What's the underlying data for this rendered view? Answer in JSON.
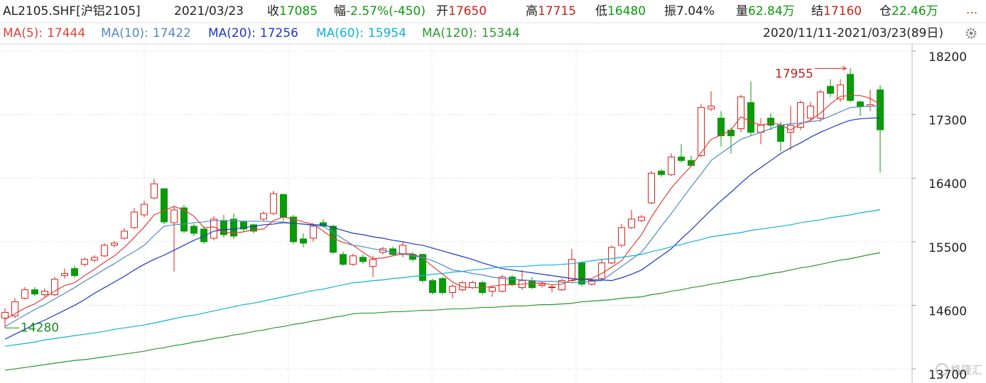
{
  "header": {
    "symbol": "AL2105.SHF[沪铝2105]",
    "date": "2021/03/23",
    "quote": [
      {
        "label": "收",
        "value": 17085,
        "color": "#0a9a0a"
      },
      {
        "label": "幅",
        "value": "-2.57%(-450)",
        "color": "#0a9a0a"
      },
      {
        "label": "开",
        "value": 17650,
        "color": "#d0201a"
      },
      {
        "label": "高",
        "value": 17715,
        "color": "#d0201a"
      },
      {
        "label": "低",
        "value": 16480,
        "color": "#0a9a0a"
      },
      {
        "label": "振",
        "value": "7.04%",
        "color": "#222222"
      },
      {
        "label": "量",
        "value": "62.84万",
        "color": "#0a9a0a"
      },
      {
        "label": "结",
        "value": 17160,
        "color": "#d0201a"
      },
      {
        "label": "仓",
        "value": "22.46万",
        "color": "#0a9a0a"
      }
    ],
    "more": "...",
    "range": "2020/11/11-2021/03/23(89日)"
  },
  "watermark": "格隆汇",
  "chart_data": {
    "type": "candlestick",
    "up_color": "#e0201a",
    "down_color": "#0a9a0a",
    "grid": true,
    "ylim": [
      13500,
      18300
    ],
    "yticks": [
      13700,
      14600,
      15500,
      16400,
      17300,
      18200
    ],
    "categories": [
      null,
      null,
      null,
      null,
      null,
      null,
      null,
      null,
      null,
      null,
      null,
      null,
      null,
      null,
      null,
      null,
      null,
      null,
      null,
      null,
      null,
      null,
      null,
      null,
      null,
      null,
      null,
      null,
      null,
      null,
      null,
      null,
      null,
      null,
      null,
      null,
      null,
      null,
      null,
      null,
      null,
      null,
      null,
      null,
      null,
      null,
      null,
      null,
      null,
      null,
      null,
      null,
      null,
      null,
      null,
      null,
      null,
      null,
      null,
      null,
      null,
      null,
      null,
      null,
      null,
      null,
      null,
      null,
      null,
      null,
      null,
      null,
      null,
      null,
      null,
      null,
      null,
      null,
      null,
      null,
      null,
      null,
      null,
      null,
      null,
      null,
      null,
      null,
      null
    ],
    "open": [
      14420,
      14450,
      14700,
      14820,
      14750,
      14750,
      15020,
      15120,
      15180,
      15240,
      15300,
      15450,
      15550,
      15700,
      15880,
      16120,
      16250,
      15770,
      15980,
      15720,
      15680,
      15550,
      15800,
      15820,
      15780,
      15740,
      15820,
      15900,
      16170,
      15850,
      15540,
      15550,
      15770,
      15720,
      15320,
      15180,
      15280,
      15150,
      15350,
      15400,
      15320,
      15320,
      15320,
      14950,
      14980,
      14780,
      14820,
      14850,
      14920,
      14800,
      14800,
      15000,
      14850,
      14950,
      14880,
      14850,
      14820,
      14950,
      15200,
      14900,
      14980,
      15200,
      15450,
      15700,
      15800,
      16050,
      16500,
      16450,
      16700,
      16650,
      16720,
      17380,
      17250,
      17080,
      17100,
      17470,
      17050,
      17250,
      17150,
      17050,
      17120,
      17250,
      17250,
      17700,
      17520,
      17870,
      17480,
      17420,
      17650
    ],
    "high": [
      14560,
      14700,
      14860,
      14860,
      14840,
      15000,
      15120,
      15160,
      15280,
      15310,
      15480,
      15510,
      15690,
      15980,
      16080,
      16390,
      16260,
      16000,
      16020,
      15760,
      15720,
      15860,
      15880,
      15900,
      15800,
      15760,
      15930,
      16220,
      16180,
      15880,
      15620,
      15760,
      15820,
      15740,
      15360,
      15330,
      15320,
      15300,
      15430,
      15430,
      15500,
      15350,
      15330,
      14980,
      15000,
      14900,
      14950,
      14950,
      14950,
      14880,
      15030,
      15030,
      15100,
      15000,
      14930,
      14900,
      14980,
      15400,
      15220,
      14980,
      15250,
      15450,
      15750,
      15950,
      15880,
      16500,
      16530,
      16750,
      16880,
      16720,
      17450,
      17630,
      17350,
      17120,
      17580,
      17770,
      17250,
      17320,
      17200,
      17420,
      17500,
      17480,
      17650,
      17800,
      17800,
      17955,
      17500,
      17650,
      17715
    ],
    "low": [
      14280,
      14420,
      14680,
      14730,
      14720,
      14730,
      14980,
      14990,
      15150,
      15210,
      15280,
      15420,
      15530,
      15680,
      15850,
      16100,
      15750,
      15080,
      15620,
      15580,
      15470,
      15520,
      15560,
      15540,
      15640,
      15620,
      15800,
      15880,
      15800,
      15470,
      15420,
      15500,
      15700,
      15330,
      15160,
      15160,
      15190,
      15000,
      15320,
      15300,
      15280,
      15220,
      14920,
      14750,
      14750,
      14700,
      14790,
      14830,
      14750,
      14720,
      14780,
      14870,
      14820,
      14830,
      14850,
      14780,
      14800,
      14930,
      14870,
      14880,
      14950,
      15180,
      15420,
      15680,
      15780,
      16030,
      16420,
      16430,
      16620,
      16560,
      16700,
      17350,
      16850,
      16750,
      17050,
      17000,
      16880,
      17080,
      16780,
      16800,
      17080,
      17200,
      17200,
      17550,
      17480,
      17480,
      17280,
      17350,
      16480
    ],
    "close": [
      14500,
      14650,
      14820,
      14760,
      14800,
      14970,
      15050,
      15020,
      15250,
      15280,
      15450,
      15480,
      15650,
      15920,
      16030,
      16320,
      15780,
      15950,
      15650,
      15620,
      15500,
      15820,
      15600,
      15580,
      15680,
      15650,
      15900,
      16180,
      15850,
      15500,
      15480,
      15720,
      15720,
      15350,
      15180,
      15300,
      15220,
      15250,
      15400,
      15320,
      15450,
      15250,
      14950,
      14780,
      14780,
      14870,
      14920,
      14920,
      14780,
      14850,
      15000,
      14900,
      14950,
      14850,
      14900,
      14860,
      14950,
      15250,
      14900,
      14950,
      15200,
      15420,
      15700,
      15820,
      15850,
      16470,
      16450,
      16700,
      16650,
      16580,
      17400,
      17420,
      17000,
      17000,
      17550,
      17050,
      17150,
      17150,
      16920,
      17150,
      17470,
      17420,
      17620,
      17600,
      17720,
      17500,
      17420,
      17440,
      17085
    ],
    "series": [
      {
        "name": "MA(5):",
        "color": "#e0403a",
        "values": [
          14400,
          14480,
          14560,
          14620,
          14710,
          14800,
          14880,
          14920,
          15020,
          15110,
          15210,
          15300,
          15420,
          15560,
          15710,
          15880,
          15940,
          16000,
          15950,
          15860,
          15700,
          15710,
          15640,
          15620,
          15640,
          15670,
          15680,
          15800,
          15850,
          15820,
          15780,
          15750,
          15650,
          15550,
          15490,
          15450,
          15350,
          15260,
          15270,
          15300,
          15330,
          15330,
          15270,
          15150,
          15040,
          14930,
          14860,
          14850,
          14850,
          14870,
          14890,
          14890,
          14900,
          14910,
          14920,
          14890,
          14900,
          14960,
          14970,
          14980,
          15050,
          15140,
          15230,
          15420,
          15600,
          15850,
          16060,
          16260,
          16420,
          16570,
          16760,
          16950,
          17010,
          17080,
          17270,
          17200,
          17150,
          17180,
          17160,
          17080,
          17170,
          17220,
          17320,
          17450,
          17560,
          17570,
          17570,
          17530,
          17444
        ]
      },
      {
        "name": "MA(10):",
        "color": "#4f8ac4",
        "values": [
          14300,
          14380,
          14460,
          14540,
          14610,
          14690,
          14770,
          14850,
          14940,
          15020,
          15110,
          15190,
          15280,
          15360,
          15450,
          15590,
          15720,
          15740,
          15750,
          15770,
          15780,
          15800,
          15800,
          15800,
          15790,
          15790,
          15790,
          15780,
          15780,
          15760,
          15750,
          15730,
          15720,
          15630,
          15540,
          15450,
          15430,
          15400,
          15380,
          15350,
          15330,
          15300,
          15280,
          15230,
          15170,
          15100,
          15080,
          15050,
          15030,
          15000,
          14980,
          14970,
          14960,
          14950,
          14940,
          14940,
          14930,
          14920,
          14930,
          14940,
          14950,
          15050,
          15150,
          15250,
          15350,
          15530,
          15720,
          15900,
          16090,
          16280,
          16460,
          16650,
          16750,
          16850,
          16950,
          17000,
          17050,
          17100,
          17150,
          17170,
          17180,
          17200,
          17220,
          17280,
          17340,
          17400,
          17410,
          17420,
          17422
        ]
      },
      {
        "name": "MA(20):",
        "color": "#1c38c4",
        "values": [
          14120,
          14190,
          14260,
          14330,
          14390,
          14460,
          14530,
          14600,
          14680,
          14770,
          14850,
          14930,
          15010,
          15100,
          15180,
          15250,
          15310,
          15380,
          15450,
          15520,
          15580,
          15650,
          15670,
          15680,
          15700,
          15720,
          15740,
          15750,
          15770,
          15760,
          15750,
          15740,
          15740,
          15700,
          15660,
          15620,
          15600,
          15570,
          15550,
          15520,
          15500,
          15470,
          15450,
          15410,
          15370,
          15330,
          15290,
          15250,
          15200,
          15160,
          15120,
          15100,
          15080,
          15060,
          15040,
          15020,
          15000,
          14980,
          14970,
          14960,
          14960,
          14950,
          14990,
          15040,
          15100,
          15200,
          15300,
          15400,
          15540,
          15670,
          15810,
          15950,
          16080,
          16200,
          16330,
          16450,
          16550,
          16650,
          16750,
          16830,
          16900,
          16980,
          17050,
          17110,
          17170,
          17220,
          17240,
          17250,
          17256
        ]
      },
      {
        "name": "MA(60):",
        "color": "#12b0d8",
        "values": [
          14020,
          14040,
          14060,
          14080,
          14110,
          14130,
          14150,
          14170,
          14190,
          14210,
          14230,
          14260,
          14280,
          14300,
          14320,
          14350,
          14380,
          14410,
          14440,
          14460,
          14490,
          14520,
          14550,
          14580,
          14610,
          14630,
          14660,
          14690,
          14720,
          14750,
          14780,
          14810,
          14830,
          14860,
          14890,
          14920,
          14930,
          14950,
          14960,
          14980,
          14990,
          15010,
          15020,
          15040,
          15050,
          15070,
          15080,
          15100,
          15110,
          15130,
          15140,
          15150,
          15150,
          15160,
          15170,
          15170,
          15180,
          15190,
          15210,
          15230,
          15250,
          15260,
          15280,
          15300,
          15320,
          15360,
          15390,
          15430,
          15460,
          15500,
          15530,
          15570,
          15590,
          15610,
          15630,
          15660,
          15680,
          15700,
          15720,
          15740,
          15770,
          15790,
          15810,
          15840,
          15860,
          15880,
          15910,
          15930,
          15954
        ]
      },
      {
        "name": "MA(120):",
        "color": "#2a9a2a",
        "values": [
          13680,
          13700,
          13720,
          13740,
          13760,
          13780,
          13800,
          13820,
          13830,
          13850,
          13870,
          13890,
          13910,
          13930,
          13950,
          13980,
          14000,
          14030,
          14050,
          14080,
          14100,
          14130,
          14150,
          14180,
          14200,
          14230,
          14250,
          14280,
          14300,
          14330,
          14350,
          14380,
          14400,
          14430,
          14450,
          14480,
          14490,
          14490,
          14500,
          14510,
          14510,
          14520,
          14530,
          14530,
          14540,
          14550,
          14550,
          14560,
          14570,
          14570,
          14580,
          14590,
          14590,
          14600,
          14610,
          14610,
          14620,
          14630,
          14650,
          14660,
          14670,
          14680,
          14700,
          14710,
          14720,
          14750,
          14770,
          14800,
          14820,
          14850,
          14870,
          14900,
          14920,
          14950,
          14970,
          15000,
          15020,
          15050,
          15070,
          15100,
          15130,
          15150,
          15180,
          15210,
          15240,
          15260,
          15290,
          15320,
          15344
        ]
      }
    ]
  }
}
